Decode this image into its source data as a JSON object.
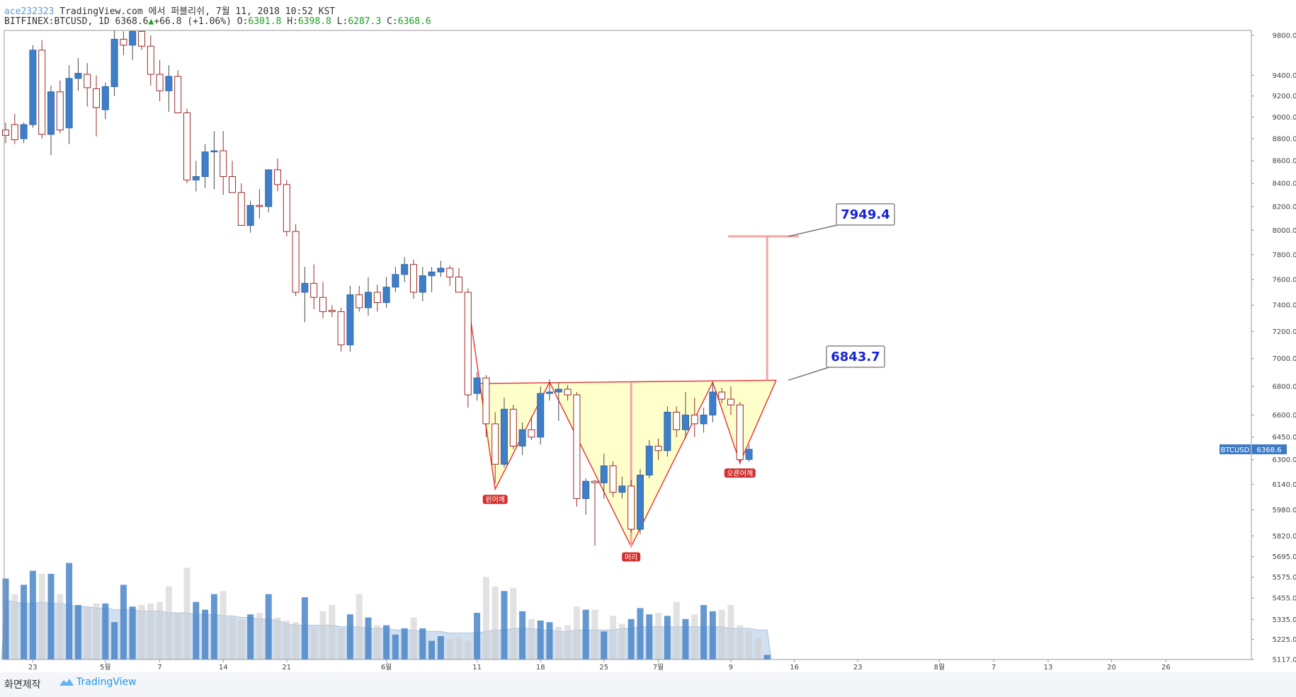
{
  "header": {
    "user": "ace232323",
    "publish_text": "TradingView.com 에서 퍼블리쉬, 7월 11, 2018 10:52 KST",
    "symbol": "BITFINEX:BTCUSD, 1D",
    "last": "6368.6",
    "change": "+66.8 (+1.06%)",
    "o_label": "O:",
    "o": "6301.8",
    "h_label": "H:",
    "h": "6398.8",
    "l_label": "L:",
    "l": "6287.3",
    "c_label": "C:",
    "c": "6368.6"
  },
  "footer": {
    "made_label": "화면제작",
    "brand": "TradingView"
  },
  "colors": {
    "up_body": "#3f7fc9",
    "down_body": "#ffffff",
    "down_border": "#9b2a2a",
    "wick": "#555555",
    "pattern_fill": "#ffffcc",
    "pattern_line": "#e83030",
    "target_line": "#f4a5a5",
    "badge": "#d32f2f",
    "price_tag": "#3d7bc4"
  },
  "chart_data": {
    "type": "candlestick",
    "y_scale": "log",
    "ylim": [
      5117,
      9850
    ],
    "y_ticks": [
      9800,
      9400,
      9200,
      9000,
      8800,
      8600,
      8400,
      8200,
      8000,
      7800,
      7600,
      7400,
      7200,
      7000,
      6800,
      6600,
      6450,
      6300,
      6140,
      5980,
      5820,
      5695,
      5575,
      5455,
      5335,
      5225,
      5117
    ],
    "y_tick_labels": [
      "9800.0",
      "9400.0",
      "9200.0",
      "9000.0",
      "8800.0",
      "8600.0",
      "8400.0",
      "8200.0",
      "8000.0",
      "7800.0",
      "7600.0",
      "7400.0",
      "7200.0",
      "7000.0",
      "6800.0",
      "6600.0",
      "6450.0",
      "6300.0",
      "6140.0",
      "5980.0",
      "5820.0",
      "5695.0",
      "5575.0",
      "5455.0",
      "5335.0",
      "5225.0",
      "5117.0"
    ],
    "x_labels": [
      "23",
      "5월",
      "7",
      "14",
      "21",
      "6월",
      "11",
      "18",
      "25",
      "7월",
      "9",
      "16",
      "23",
      "8월",
      "7",
      "13",
      "20",
      "26"
    ],
    "x_label_dates": [
      "2018-04-23",
      "2018-05-01",
      "2018-05-07",
      "2018-05-14",
      "2018-05-21",
      "2018-06-01",
      "2018-06-11",
      "2018-06-18",
      "2018-06-25",
      "2018-07-01",
      "2018-07-09",
      "2018-07-16",
      "2018-07-23",
      "2018-08-01",
      "2018-08-07",
      "2018-08-13",
      "2018-08-20",
      "2018-08-26"
    ],
    "candles": [
      {
        "date": "2018-04-20",
        "o": 8880,
        "h": 8950,
        "l": 8760,
        "c": 8830
      },
      {
        "date": "2018-04-21",
        "o": 8930,
        "h": 9030,
        "l": 8750,
        "c": 8790
      },
      {
        "date": "2018-04-22",
        "o": 8800,
        "h": 8950,
        "l": 8760,
        "c": 8930
      },
      {
        "date": "2018-04-23",
        "o": 8930,
        "h": 9700,
        "l": 8900,
        "c": 9650
      },
      {
        "date": "2018-04-24",
        "o": 9650,
        "h": 9750,
        "l": 8800,
        "c": 8840
      },
      {
        "date": "2018-04-25",
        "o": 8840,
        "h": 9300,
        "l": 8650,
        "c": 9240
      },
      {
        "date": "2018-04-26",
        "o": 9240,
        "h": 9350,
        "l": 8850,
        "c": 8880
      },
      {
        "date": "2018-04-27",
        "o": 8900,
        "h": 9500,
        "l": 8750,
        "c": 9370
      },
      {
        "date": "2018-04-28",
        "o": 9370,
        "h": 9570,
        "l": 9250,
        "c": 9420
      },
      {
        "date": "2018-04-29",
        "o": 9410,
        "h": 9520,
        "l": 9100,
        "c": 9280
      },
      {
        "date": "2018-04-30",
        "o": 9270,
        "h": 9400,
        "l": 8820,
        "c": 9090
      },
      {
        "date": "2018-05-01",
        "o": 9070,
        "h": 9330,
        "l": 8980,
        "c": 9290
      },
      {
        "date": "2018-05-02",
        "o": 9290,
        "h": 9850,
        "l": 9200,
        "c": 9760
      },
      {
        "date": "2018-05-03",
        "o": 9760,
        "h": 9840,
        "l": 9600,
        "c": 9700
      },
      {
        "date": "2018-05-04",
        "o": 9700,
        "h": 9850,
        "l": 9550,
        "c": 9840
      },
      {
        "date": "2018-05-05",
        "o": 9840,
        "h": 9850,
        "l": 9650,
        "c": 9690
      },
      {
        "date": "2018-05-06",
        "o": 9690,
        "h": 9800,
        "l": 9300,
        "c": 9410
      },
      {
        "date": "2018-05-07",
        "o": 9410,
        "h": 9550,
        "l": 9150,
        "c": 9250
      },
      {
        "date": "2018-05-08",
        "o": 9250,
        "h": 9500,
        "l": 9050,
        "c": 9390
      },
      {
        "date": "2018-05-09",
        "o": 9390,
        "h": 9450,
        "l": 9050,
        "c": 9040
      },
      {
        "date": "2018-05-10",
        "o": 9040,
        "h": 9080,
        "l": 8400,
        "c": 8430
      },
      {
        "date": "2018-05-11",
        "o": 8430,
        "h": 8600,
        "l": 8330,
        "c": 8460
      },
      {
        "date": "2018-05-12",
        "o": 8460,
        "h": 8750,
        "l": 8360,
        "c": 8680
      },
      {
        "date": "2018-05-13",
        "o": 8680,
        "h": 8870,
        "l": 8350,
        "c": 8690
      },
      {
        "date": "2018-05-14",
        "o": 8690,
        "h": 8870,
        "l": 8300,
        "c": 8460
      },
      {
        "date": "2018-05-15",
        "o": 8460,
        "h": 8600,
        "l": 8350,
        "c": 8320
      },
      {
        "date": "2018-05-16",
        "o": 8320,
        "h": 8400,
        "l": 8080,
        "c": 8040
      },
      {
        "date": "2018-05-17",
        "o": 8040,
        "h": 8250,
        "l": 7980,
        "c": 8210
      },
      {
        "date": "2018-05-18",
        "o": 8210,
        "h": 8350,
        "l": 8100,
        "c": 8200
      },
      {
        "date": "2018-05-19",
        "o": 8200,
        "h": 8520,
        "l": 8150,
        "c": 8520
      },
      {
        "date": "2018-05-20",
        "o": 8520,
        "h": 8620,
        "l": 8330,
        "c": 8390
      },
      {
        "date": "2018-05-21",
        "o": 8390,
        "h": 8430,
        "l": 7950,
        "c": 7990
      },
      {
        "date": "2018-05-22",
        "o": 7990,
        "h": 8050,
        "l": 7470,
        "c": 7500
      },
      {
        "date": "2018-05-23",
        "o": 7500,
        "h": 7700,
        "l": 7270,
        "c": 7570
      },
      {
        "date": "2018-05-24",
        "o": 7570,
        "h": 7720,
        "l": 7370,
        "c": 7460
      },
      {
        "date": "2018-05-25",
        "o": 7460,
        "h": 7580,
        "l": 7300,
        "c": 7350
      },
      {
        "date": "2018-05-26",
        "o": 7360,
        "h": 7400,
        "l": 7310,
        "c": 7350
      },
      {
        "date": "2018-05-27",
        "o": 7350,
        "h": 7380,
        "l": 7050,
        "c": 7100
      },
      {
        "date": "2018-05-28",
        "o": 7100,
        "h": 7550,
        "l": 7050,
        "c": 7480
      },
      {
        "date": "2018-05-29",
        "o": 7480,
        "h": 7550,
        "l": 7350,
        "c": 7380
      },
      {
        "date": "2018-05-30",
        "o": 7380,
        "h": 7620,
        "l": 7320,
        "c": 7500
      },
      {
        "date": "2018-05-31",
        "o": 7500,
        "h": 7560,
        "l": 7350,
        "c": 7420
      },
      {
        "date": "2018-06-01",
        "o": 7420,
        "h": 7620,
        "l": 7380,
        "c": 7540
      },
      {
        "date": "2018-06-02",
        "o": 7540,
        "h": 7700,
        "l": 7500,
        "c": 7640
      },
      {
        "date": "2018-06-03",
        "o": 7640,
        "h": 7780,
        "l": 7580,
        "c": 7720
      },
      {
        "date": "2018-06-04",
        "o": 7720,
        "h": 7760,
        "l": 7450,
        "c": 7500
      },
      {
        "date": "2018-06-05",
        "o": 7500,
        "h": 7700,
        "l": 7430,
        "c": 7630
      },
      {
        "date": "2018-06-06",
        "o": 7630,
        "h": 7700,
        "l": 7500,
        "c": 7660
      },
      {
        "date": "2018-06-07",
        "o": 7660,
        "h": 7750,
        "l": 7620,
        "c": 7690
      },
      {
        "date": "2018-06-08",
        "o": 7690,
        "h": 7710,
        "l": 7550,
        "c": 7620
      },
      {
        "date": "2018-06-09",
        "o": 7620,
        "h": 7690,
        "l": 7500,
        "c": 7500
      },
      {
        "date": "2018-06-10",
        "o": 7500,
        "h": 7530,
        "l": 6650,
        "c": 6740
      },
      {
        "date": "2018-06-11",
        "o": 6750,
        "h": 6900,
        "l": 6700,
        "c": 6860
      },
      {
        "date": "2018-06-12",
        "o": 6860,
        "h": 6880,
        "l": 6450,
        "c": 6540
      },
      {
        "date": "2018-06-13",
        "o": 6540,
        "h": 6620,
        "l": 6150,
        "c": 6270
      },
      {
        "date": "2018-06-14",
        "o": 6270,
        "h": 6720,
        "l": 6250,
        "c": 6640
      },
      {
        "date": "2018-06-15",
        "o": 6640,
        "h": 6670,
        "l": 6370,
        "c": 6390
      },
      {
        "date": "2018-06-16",
        "o": 6390,
        "h": 6550,
        "l": 6330,
        "c": 6500
      },
      {
        "date": "2018-06-17",
        "o": 6500,
        "h": 6590,
        "l": 6430,
        "c": 6450
      },
      {
        "date": "2018-06-18",
        "o": 6450,
        "h": 6800,
        "l": 6400,
        "c": 6750
      },
      {
        "date": "2018-06-19",
        "o": 6750,
        "h": 6850,
        "l": 6700,
        "c": 6760
      },
      {
        "date": "2018-06-20",
        "o": 6760,
        "h": 6830,
        "l": 6560,
        "c": 6780
      },
      {
        "date": "2018-06-21",
        "o": 6780,
        "h": 6810,
        "l": 6700,
        "c": 6740
      },
      {
        "date": "2018-06-22",
        "o": 6740,
        "h": 6760,
        "l": 6000,
        "c": 6050
      },
      {
        "date": "2018-06-23",
        "o": 6050,
        "h": 6180,
        "l": 5950,
        "c": 6160
      },
      {
        "date": "2018-06-24",
        "o": 6160,
        "h": 6170,
        "l": 5760,
        "c": 6150
      },
      {
        "date": "2018-06-25",
        "o": 6150,
        "h": 6340,
        "l": 6050,
        "c": 6260
      },
      {
        "date": "2018-06-26",
        "o": 6260,
        "h": 6290,
        "l": 6060,
        "c": 6090
      },
      {
        "date": "2018-06-27",
        "o": 6090,
        "h": 6190,
        "l": 6050,
        "c": 6130
      },
      {
        "date": "2018-06-28",
        "o": 6130,
        "h": 6170,
        "l": 5840,
        "c": 5860
      },
      {
        "date": "2018-06-29",
        "o": 5860,
        "h": 6240,
        "l": 5830,
        "c": 6200
      },
      {
        "date": "2018-06-30",
        "o": 6200,
        "h": 6430,
        "l": 6180,
        "c": 6390
      },
      {
        "date": "2018-07-01",
        "o": 6390,
        "h": 6440,
        "l": 6300,
        "c": 6360
      },
      {
        "date": "2018-07-02",
        "o": 6360,
        "h": 6660,
        "l": 6320,
        "c": 6620
      },
      {
        "date": "2018-07-03",
        "o": 6620,
        "h": 6660,
        "l": 6450,
        "c": 6500
      },
      {
        "date": "2018-07-04",
        "o": 6500,
        "h": 6760,
        "l": 6440,
        "c": 6600
      },
      {
        "date": "2018-07-05",
        "o": 6600,
        "h": 6720,
        "l": 6450,
        "c": 6540
      },
      {
        "date": "2018-07-06",
        "o": 6540,
        "h": 6650,
        "l": 6480,
        "c": 6600
      },
      {
        "date": "2018-07-07",
        "o": 6600,
        "h": 6820,
        "l": 6550,
        "c": 6760
      },
      {
        "date": "2018-07-08",
        "o": 6760,
        "h": 6790,
        "l": 6680,
        "c": 6710
      },
      {
        "date": "2018-07-09",
        "o": 6710,
        "h": 6800,
        "l": 6600,
        "c": 6670
      },
      {
        "date": "2018-07-10",
        "o": 6670,
        "h": 6690,
        "l": 6270,
        "c": 6300
      },
      {
        "date": "2018-07-11",
        "o": 6301.8,
        "h": 6398.8,
        "l": 6287.3,
        "c": 6368.6
      }
    ],
    "volume_ylim": [
      0,
      100
    ],
    "volume": [
      52,
      42,
      48,
      57,
      55,
      55,
      42,
      62,
      35,
      34,
      36,
      36,
      24,
      48,
      34,
      35,
      36,
      37,
      47,
      30,
      59,
      37,
      32,
      42,
      44,
      27,
      25,
      29,
      30,
      42,
      27,
      25,
      24,
      40,
      21,
      31,
      35,
      20,
      29,
      42,
      27,
      22,
      22,
      16,
      20,
      27,
      20,
      12,
      15,
      13,
      14,
      12,
      30,
      53,
      47,
      44,
      46,
      31,
      26,
      25,
      24,
      21,
      22,
      34,
      32,
      32,
      18,
      28,
      23,
      26,
      33,
      29,
      30,
      28,
      37,
      26,
      29,
      35,
      31,
      32,
      35,
      22,
      18,
      14,
      3
    ],
    "volume_up": [
      true,
      false,
      true,
      true,
      false,
      true,
      false,
      true,
      true,
      false,
      false,
      true,
      true,
      true,
      true,
      false,
      false,
      false,
      false,
      false,
      false,
      true,
      true,
      true,
      false,
      false,
      false,
      true,
      false,
      true,
      false,
      false,
      false,
      true,
      false,
      false,
      false,
      false,
      true,
      false,
      true,
      false,
      true,
      true,
      true,
      false,
      true,
      true,
      true,
      false,
      false,
      false,
      true,
      false,
      false,
      true,
      false,
      true,
      false,
      true,
      true,
      false,
      false,
      false,
      true,
      false,
      true,
      false,
      false,
      true,
      true,
      true,
      false,
      true,
      false,
      true,
      false,
      true,
      true,
      false,
      false,
      false,
      false,
      false,
      true
    ],
    "volume_ma": [
      38,
      37,
      36,
      36,
      37,
      36,
      36,
      35,
      34,
      34,
      33,
      33,
      32,
      32,
      32,
      31,
      31,
      31,
      30,
      30,
      30,
      29,
      29,
      29,
      28,
      28,
      27,
      27,
      26,
      26,
      25,
      23,
      22,
      22,
      22,
      22,
      22,
      21,
      21,
      21,
      20,
      20,
      20,
      19,
      19,
      19,
      18,
      18,
      18,
      17,
      17,
      17,
      17,
      18,
      19,
      19,
      20,
      20,
      20,
      19,
      19,
      18,
      18,
      19,
      19,
      19,
      19,
      19,
      20,
      20,
      21,
      21,
      21,
      21,
      21,
      21,
      21,
      21,
      21,
      21,
      20,
      20,
      20,
      19,
      19
    ],
    "pattern": {
      "name": "inverse head and shoulders",
      "left_shoulder": {
        "date": "2018-06-13",
        "price": 6110,
        "label": "왼어깨"
      },
      "head": {
        "date": "2018-06-28",
        "price": 5755,
        "label": "머리"
      },
      "right_shoulder": {
        "date": "2018-07-10",
        "price": 6280,
        "label": "오른어깨"
      },
      "zigzag": [
        {
          "date": "2018-06-10",
          "price": 7430
        },
        {
          "date": "2018-06-13",
          "price": 6110
        },
        {
          "date": "2018-06-19",
          "price": 6830
        },
        {
          "date": "2018-06-28",
          "price": 5755
        },
        {
          "date": "2018-07-07",
          "price": 6830
        },
        {
          "date": "2018-07-10",
          "price": 6280
        },
        {
          "date": "2018-07-14",
          "price": 6843.7
        }
      ],
      "neckline": [
        {
          "date": "2018-06-11",
          "price": 6820
        },
        {
          "date": "2018-07-14",
          "price": 6843.7
        }
      ],
      "depth_marker": {
        "date": "2018-06-28",
        "from": 6830,
        "to": 5755
      },
      "breakout_label": "6843.7",
      "breakout_price": 6843.7,
      "target_label": "7949.4",
      "target_price": 7949.4,
      "target_range": {
        "date": "2018-07-13",
        "from": 6843.7,
        "to": 7949.4
      }
    },
    "last_price_tag": {
      "symbol": "BTCUSD",
      "value": "6368.6",
      "price": 6368.6
    }
  }
}
